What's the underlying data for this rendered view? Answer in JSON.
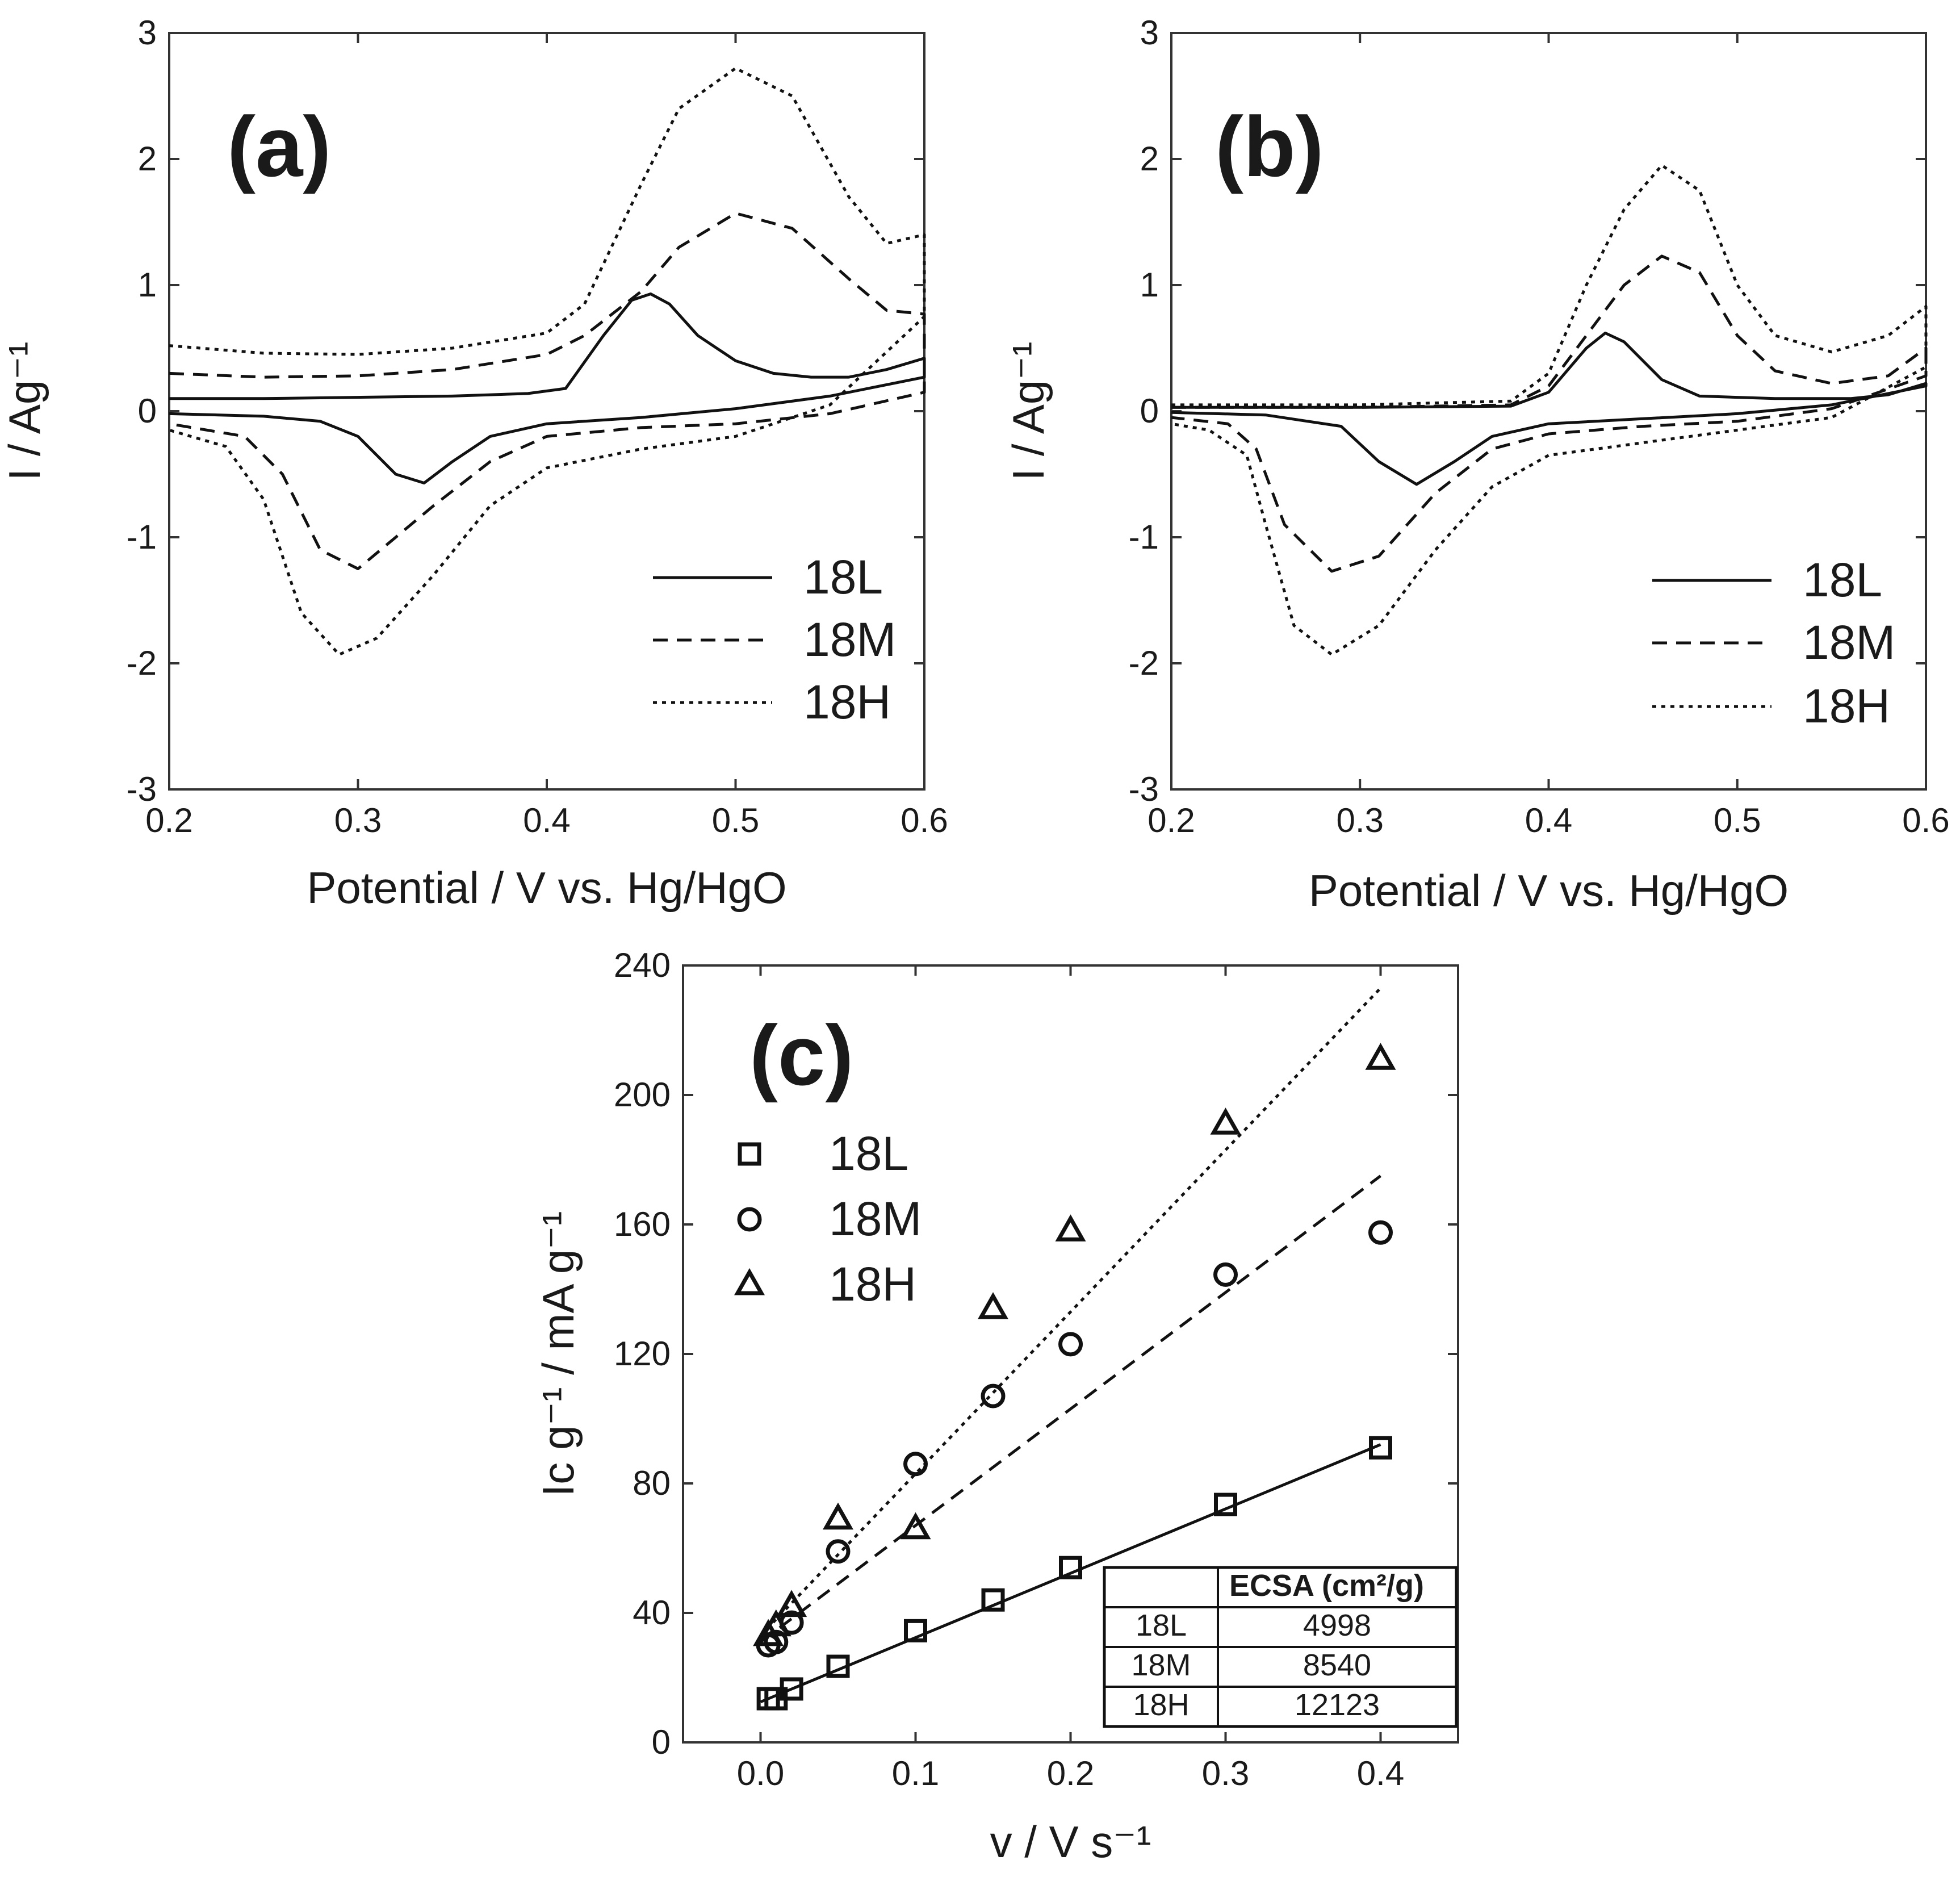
{
  "chart_data": [
    {
      "id": "a",
      "panel_label": "(a)",
      "type": "line",
      "xlabel": "Potential / V vs. Hg/HgO",
      "ylabel": "I / Ag⁻¹",
      "xlim": [
        0.2,
        0.6
      ],
      "ylim": [
        -3,
        3
      ],
      "xticks": [
        "0.2",
        "0.3",
        "0.4",
        "0.5",
        "0.6"
      ],
      "yticks": [
        "-3",
        "-2",
        "-1",
        "0",
        "1",
        "2",
        "3"
      ],
      "legend_position": "bottom-right",
      "series": [
        {
          "name": "18L",
          "style": "solid",
          "anodic": [
            [
              0.2,
              0.1
            ],
            [
              0.25,
              0.1
            ],
            [
              0.3,
              0.11
            ],
            [
              0.35,
              0.12
            ],
            [
              0.39,
              0.14
            ],
            [
              0.41,
              0.18
            ],
            [
              0.43,
              0.6
            ],
            [
              0.445,
              0.88
            ],
            [
              0.455,
              0.93
            ],
            [
              0.465,
              0.85
            ],
            [
              0.48,
              0.6
            ],
            [
              0.5,
              0.4
            ],
            [
              0.52,
              0.3
            ],
            [
              0.54,
              0.27
            ],
            [
              0.56,
              0.27
            ],
            [
              0.58,
              0.33
            ],
            [
              0.6,
              0.42
            ]
          ],
          "cathodic": [
            [
              0.6,
              0.27
            ],
            [
              0.55,
              0.12
            ],
            [
              0.5,
              0.02
            ],
            [
              0.45,
              -0.05
            ],
            [
              0.4,
              -0.1
            ],
            [
              0.37,
              -0.2
            ],
            [
              0.35,
              -0.4
            ],
            [
              0.335,
              -0.57
            ],
            [
              0.32,
              -0.5
            ],
            [
              0.3,
              -0.2
            ],
            [
              0.28,
              -0.08
            ],
            [
              0.25,
              -0.04
            ],
            [
              0.2,
              -0.02
            ]
          ]
        },
        {
          "name": "18M",
          "style": "dashed",
          "anodic": [
            [
              0.2,
              0.3
            ],
            [
              0.25,
              0.27
            ],
            [
              0.3,
              0.28
            ],
            [
              0.35,
              0.33
            ],
            [
              0.4,
              0.45
            ],
            [
              0.42,
              0.6
            ],
            [
              0.45,
              0.95
            ],
            [
              0.47,
              1.3
            ],
            [
              0.5,
              1.57
            ],
            [
              0.53,
              1.45
            ],
            [
              0.56,
              1.05
            ],
            [
              0.58,
              0.8
            ],
            [
              0.6,
              0.77
            ]
          ],
          "cathodic": [
            [
              0.6,
              0.15
            ],
            [
              0.55,
              -0.02
            ],
            [
              0.5,
              -0.1
            ],
            [
              0.45,
              -0.13
            ],
            [
              0.4,
              -0.2
            ],
            [
              0.37,
              -0.4
            ],
            [
              0.34,
              -0.75
            ],
            [
              0.3,
              -1.25
            ],
            [
              0.28,
              -1.1
            ],
            [
              0.26,
              -0.5
            ],
            [
              0.24,
              -0.2
            ],
            [
              0.2,
              -0.1
            ]
          ]
        },
        {
          "name": "18H",
          "style": "dotted",
          "anodic": [
            [
              0.2,
              0.52
            ],
            [
              0.25,
              0.46
            ],
            [
              0.3,
              0.45
            ],
            [
              0.35,
              0.5
            ],
            [
              0.4,
              0.62
            ],
            [
              0.42,
              0.85
            ],
            [
              0.45,
              1.8
            ],
            [
              0.47,
              2.4
            ],
            [
              0.5,
              2.72
            ],
            [
              0.53,
              2.5
            ],
            [
              0.56,
              1.7
            ],
            [
              0.58,
              1.33
            ],
            [
              0.6,
              1.4
            ]
          ],
          "cathodic": [
            [
              0.6,
              0.75
            ],
            [
              0.55,
              0.05
            ],
            [
              0.5,
              -0.2
            ],
            [
              0.45,
              -0.3
            ],
            [
              0.4,
              -0.45
            ],
            [
              0.37,
              -0.75
            ],
            [
              0.34,
              -1.3
            ],
            [
              0.31,
              -1.8
            ],
            [
              0.29,
              -1.93
            ],
            [
              0.27,
              -1.6
            ],
            [
              0.25,
              -0.7
            ],
            [
              0.23,
              -0.28
            ],
            [
              0.2,
              -0.15
            ]
          ]
        }
      ]
    },
    {
      "id": "b",
      "panel_label": "(b)",
      "type": "line",
      "xlabel": "Potential / V vs. Hg/HgO",
      "ylabel": "I / Ag⁻¹",
      "xlim": [
        0.2,
        0.6
      ],
      "ylim": [
        -3,
        3
      ],
      "xticks": [
        "0.2",
        "0.3",
        "0.4",
        "0.5",
        "0.6"
      ],
      "yticks": [
        "-3",
        "-2",
        "-1",
        "0",
        "1",
        "2",
        "3"
      ],
      "legend_position": "bottom-right",
      "series": [
        {
          "name": "18L",
          "style": "solid",
          "anodic": [
            [
              0.2,
              0.03
            ],
            [
              0.3,
              0.03
            ],
            [
              0.38,
              0.04
            ],
            [
              0.4,
              0.15
            ],
            [
              0.42,
              0.5
            ],
            [
              0.43,
              0.62
            ],
            [
              0.44,
              0.55
            ],
            [
              0.46,
              0.25
            ],
            [
              0.48,
              0.12
            ],
            [
              0.52,
              0.1
            ],
            [
              0.56,
              0.1
            ],
            [
              0.58,
              0.13
            ],
            [
              0.6,
              0.22
            ]
          ],
          "cathodic": [
            [
              0.6,
              0.2
            ],
            [
              0.55,
              0.05
            ],
            [
              0.5,
              -0.02
            ],
            [
              0.45,
              -0.06
            ],
            [
              0.4,
              -0.1
            ],
            [
              0.37,
              -0.2
            ],
            [
              0.35,
              -0.4
            ],
            [
              0.33,
              -0.58
            ],
            [
              0.31,
              -0.4
            ],
            [
              0.29,
              -0.12
            ],
            [
              0.25,
              -0.03
            ],
            [
              0.2,
              -0.01
            ]
          ]
        },
        {
          "name": "18M",
          "style": "dashed",
          "anodic": [
            [
              0.2,
              0.03
            ],
            [
              0.3,
              0.03
            ],
            [
              0.38,
              0.05
            ],
            [
              0.4,
              0.2
            ],
            [
              0.42,
              0.6
            ],
            [
              0.44,
              1.0
            ],
            [
              0.46,
              1.23
            ],
            [
              0.48,
              1.1
            ],
            [
              0.5,
              0.6
            ],
            [
              0.52,
              0.32
            ],
            [
              0.55,
              0.22
            ],
            [
              0.58,
              0.28
            ],
            [
              0.6,
              0.5
            ]
          ],
          "cathodic": [
            [
              0.6,
              0.28
            ],
            [
              0.55,
              0.02
            ],
            [
              0.5,
              -0.08
            ],
            [
              0.45,
              -0.12
            ],
            [
              0.4,
              -0.18
            ],
            [
              0.37,
              -0.3
            ],
            [
              0.34,
              -0.65
            ],
            [
              0.31,
              -1.15
            ],
            [
              0.285,
              -1.27
            ],
            [
              0.26,
              -0.9
            ],
            [
              0.245,
              -0.3
            ],
            [
              0.23,
              -0.1
            ],
            [
              0.2,
              -0.05
            ]
          ]
        },
        {
          "name": "18H",
          "style": "dotted",
          "anodic": [
            [
              0.2,
              0.05
            ],
            [
              0.3,
              0.05
            ],
            [
              0.38,
              0.08
            ],
            [
              0.4,
              0.3
            ],
            [
              0.42,
              1.0
            ],
            [
              0.44,
              1.6
            ],
            [
              0.46,
              1.95
            ],
            [
              0.48,
              1.75
            ],
            [
              0.5,
              1.0
            ],
            [
              0.52,
              0.6
            ],
            [
              0.55,
              0.47
            ],
            [
              0.58,
              0.6
            ],
            [
              0.6,
              0.83
            ]
          ],
          "cathodic": [
            [
              0.6,
              0.35
            ],
            [
              0.55,
              -0.05
            ],
            [
              0.5,
              -0.15
            ],
            [
              0.45,
              -0.25
            ],
            [
              0.4,
              -0.35
            ],
            [
              0.37,
              -0.6
            ],
            [
              0.34,
              -1.1
            ],
            [
              0.31,
              -1.7
            ],
            [
              0.285,
              -1.93
            ],
            [
              0.265,
              -1.7
            ],
            [
              0.25,
              -0.9
            ],
            [
              0.24,
              -0.35
            ],
            [
              0.22,
              -0.15
            ],
            [
              0.2,
              -0.1
            ]
          ]
        }
      ]
    },
    {
      "id": "c",
      "panel_label": "(c)",
      "type": "scatter",
      "xlabel": "v / V s⁻¹",
      "ylabel": "Iᴄ g⁻¹ / mA g⁻¹",
      "xlim": [
        -0.05,
        0.45
      ],
      "ylim": [
        0,
        240
      ],
      "xticks": [
        "0.0",
        "0.1",
        "0.2",
        "0.3",
        "0.4"
      ],
      "yticks": [
        "0",
        "40",
        "80",
        "120",
        "160",
        "200",
        "240"
      ],
      "legend_position": "top-left",
      "x": [
        0.005,
        0.01,
        0.02,
        0.05,
        0.1,
        0.15,
        0.2,
        0.3,
        0.4
      ],
      "series": [
        {
          "name": "18L",
          "marker": "square",
          "line": "solid",
          "values": [
            13.5,
            13.5,
            16.5,
            23.5,
            34.5,
            44,
            54,
            73.5,
            91
          ],
          "fit": [
            [
              0.0,
              12.5
            ],
            [
              0.4,
              92
            ]
          ]
        },
        {
          "name": "18M",
          "marker": "circle",
          "line": "dashed",
          "values": [
            30,
            31,
            37,
            59,
            86,
            107,
            123,
            144.5,
            157.5
          ],
          "fit": [
            [
              0.0,
              31
            ],
            [
              0.4,
              175
            ]
          ]
        },
        {
          "name": "18H",
          "marker": "triangle",
          "line": "dotted",
          "values": [
            33,
            36,
            42,
            69,
            66,
            134,
            158,
            191,
            211
          ],
          "fit": [
            [
              0.0,
              33
            ],
            [
              0.4,
              233
            ]
          ]
        }
      ],
      "ecsa_table": {
        "header": [
          "",
          "ECSA (cm²/g)"
        ],
        "rows": [
          [
            "18L",
            "4998"
          ],
          [
            "18M",
            "8540"
          ],
          [
            "18H",
            "12123"
          ]
        ]
      }
    }
  ]
}
